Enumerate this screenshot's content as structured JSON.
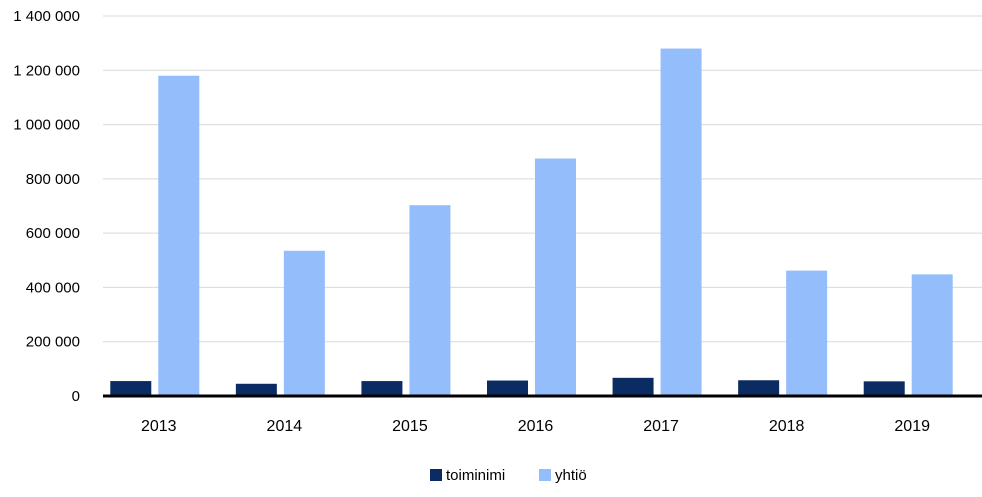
{
  "chart_data": {
    "type": "bar",
    "categories": [
      "2013",
      "2014",
      "2015",
      "2016",
      "2017",
      "2018",
      "2019"
    ],
    "series": [
      {
        "name": "toiminimi",
        "color": "#0b2c63",
        "values": [
          55000,
          45000,
          55000,
          57000,
          67000,
          58000,
          54000
        ]
      },
      {
        "name": "yhtiö",
        "color": "#93bdfb",
        "values": [
          1180000,
          535000,
          703000,
          875000,
          1280000,
          462000,
          448000
        ]
      }
    ],
    "ylim": [
      0,
      1400000
    ],
    "y_ticks": [
      0,
      200000,
      400000,
      600000,
      800000,
      1000000,
      1200000,
      1400000
    ],
    "y_tick_labels": [
      "0",
      "200 000",
      "400 000",
      "600 000",
      "800 000",
      "1 000 000",
      "1 200 000",
      "1 400 000"
    ],
    "grid": true,
    "gridline_color": "#d9d9d9",
    "axis_color": "#000000",
    "legend_position": "bottom",
    "title": "",
    "xlabel": "",
    "ylabel": ""
  }
}
